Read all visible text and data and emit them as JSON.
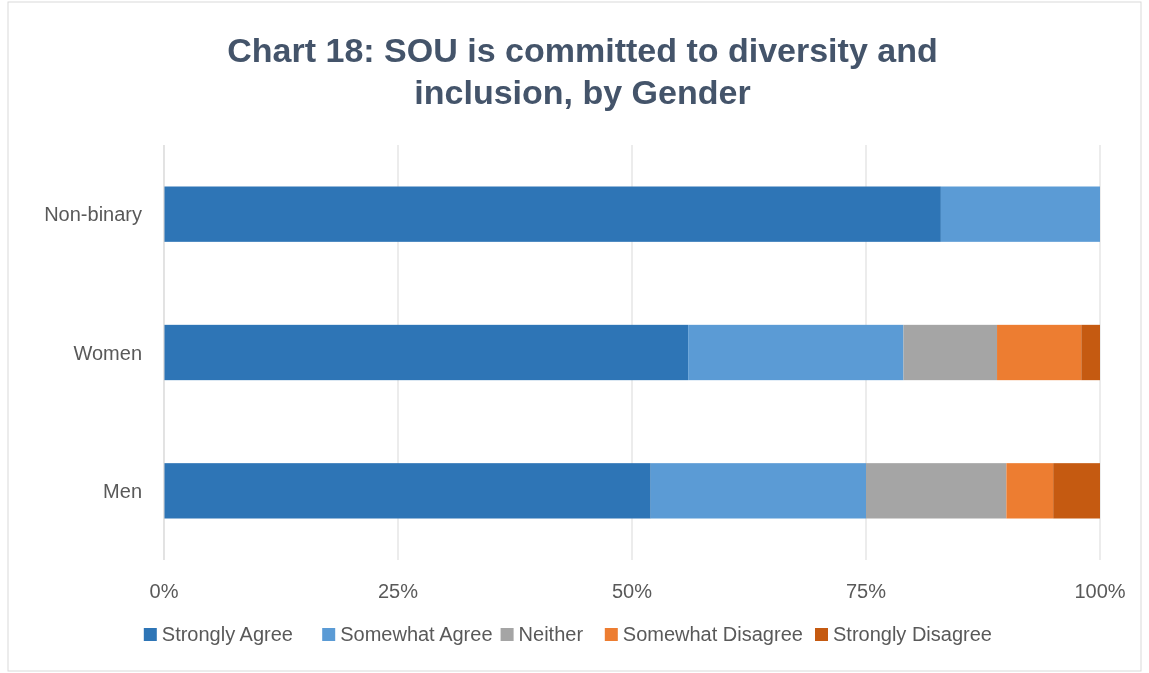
{
  "chart_data": {
    "type": "bar",
    "orientation": "horizontal",
    "stacked": true,
    "title": "Chart 18: SOU is committed to diversity and inclusion, by Gender",
    "categories": [
      "Non-binary",
      "Women",
      "Men"
    ],
    "series": [
      {
        "name": "Strongly Agree",
        "color": "#2e75b6",
        "values": [
          83,
          56,
          52
        ]
      },
      {
        "name": "Somewhat Agree",
        "color": "#5b9bd5",
        "values": [
          17,
          23,
          23
        ]
      },
      {
        "name": "Neither",
        "color": "#a5a5a5",
        "values": [
          0,
          10,
          15
        ]
      },
      {
        "name": "Somewhat Disagree",
        "color": "#ed7d31",
        "values": [
          0,
          9,
          5
        ]
      },
      {
        "name": "Strongly Disagree",
        "color": "#c55a11",
        "values": [
          0,
          2,
          5
        ]
      }
    ],
    "xlim": [
      0,
      100
    ],
    "xticks": [
      {
        "value": 0,
        "label": "0%"
      },
      {
        "value": 25,
        "label": "25%"
      },
      {
        "value": 50,
        "label": "50%"
      },
      {
        "value": 75,
        "label": "75%"
      },
      {
        "value": 100,
        "label": "100%"
      }
    ],
    "grid": "x",
    "legend": "bottom"
  }
}
